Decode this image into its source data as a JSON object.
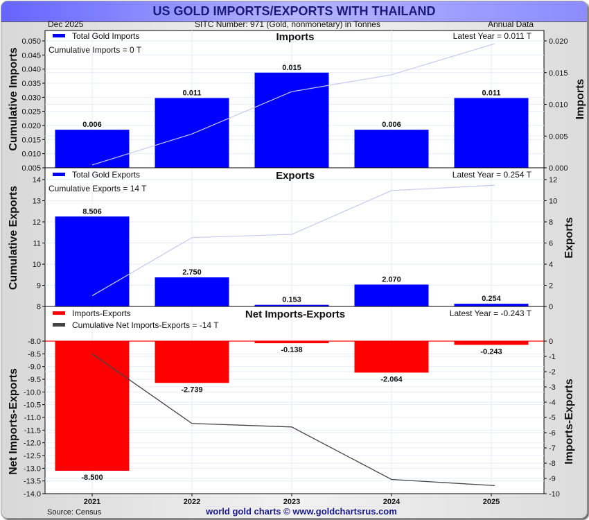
{
  "header": {
    "title": "US GOLD IMPORTS/EXPORTS WITH THAILAND",
    "date": "Dec  2025",
    "sitc": "SITC Number: 971 (Gold, nonmonetary) in Tonnes",
    "period": "Annual Data"
  },
  "footer": {
    "source": "Source: Census",
    "credit": "world gold charts © www.goldchartsrus.com"
  },
  "colors": {
    "imports_bar": "#0000ff",
    "exports_bar": "#0000ff",
    "net_bar": "#ff0000",
    "cumulative_line_light": "#c8c8f0",
    "cumulative_net_line": "#444444",
    "title_text": "#1a1a7a",
    "grid": "#e4eef8"
  },
  "chart_data": [
    {
      "type": "bar",
      "title": "Imports",
      "legend": "Total Gold Imports",
      "cumulative_label": "Cumulative Imports = 0 T",
      "latest_label": "Latest Year = 0.011 T",
      "categories": [
        "2021",
        "2022",
        "2023",
        "2024",
        "2025"
      ],
      "values": [
        0.006,
        0.011,
        0.015,
        0.006,
        0.011
      ],
      "value_labels": [
        "0.006",
        "0.011",
        "0.015",
        "0.006",
        "0.011"
      ],
      "cumulative": [
        0.006,
        0.017,
        0.032,
        0.038,
        0.049
      ],
      "ylabel_left": "Cumulative Imports",
      "ylabel_right": "Imports",
      "ylim_left": [
        0.005,
        0.052
      ],
      "ylim_right": [
        0.0,
        0.0216
      ],
      "ticks_left": [
        "0.005",
        "0.010",
        "0.015",
        "0.020",
        "0.025",
        "0.030",
        "0.035",
        "0.040",
        "0.045",
        "0.050"
      ],
      "ticks_right": [
        "0.000",
        "0.005",
        "0.010",
        "0.015",
        "0.020"
      ],
      "legend_position": "top-left",
      "grid": true
    },
    {
      "type": "bar",
      "title": "Exports",
      "legend": "Total Gold Exports",
      "cumulative_label": "Cumulative Exports = 14 T",
      "latest_label": "Latest Year = 0.254 T",
      "categories": [
        "2021",
        "2022",
        "2023",
        "2024",
        "2025"
      ],
      "values": [
        8.506,
        2.75,
        0.153,
        2.07,
        0.254
      ],
      "value_labels": [
        "8.506",
        "2.750",
        "0.153",
        "2.070",
        "0.254"
      ],
      "cumulative": [
        8.506,
        11.256,
        11.409,
        13.479,
        13.733
      ],
      "ylabel_left": "Cumulative Exports",
      "ylabel_right": "Exports",
      "ylim_left": [
        8,
        14.5
      ],
      "ylim_right": [
        0,
        13
      ],
      "ticks_left": [
        "8",
        "9",
        "10",
        "11",
        "12",
        "13",
        "14"
      ],
      "ticks_right": [
        "0",
        "2",
        "4",
        "6",
        "8",
        "10",
        "12"
      ],
      "legend_position": "top-left",
      "grid": true
    },
    {
      "type": "bar",
      "title": "Net Imports-Exports",
      "legend": "Imports-Exports",
      "legend2": "Cumulative Net Imports-Exports = -14 T",
      "latest_label": "Latest Year = -0.243 T",
      "categories": [
        "2021",
        "2022",
        "2023",
        "2024",
        "2025"
      ],
      "values": [
        -8.5,
        -2.739,
        -0.138,
        -2.064,
        -0.243
      ],
      "value_labels": [
        "-8.500",
        "-2.739",
        "-0.138",
        "-2.064",
        "-0.243"
      ],
      "cumulative": [
        -8.5,
        -11.239,
        -11.377,
        -13.441,
        -13.684
      ],
      "ylabel_left": "Net Imports-Exports",
      "ylabel_right": "Imports-Exports",
      "ylim_left": [
        -14.0,
        -8.0
      ],
      "ylim_right": [
        -10,
        0
      ],
      "ticks_left": [
        "-8.0",
        "-8.5",
        "-9.0",
        "-9.5",
        "-10.0",
        "-10.5",
        "-11.0",
        "-11.5",
        "-12.0",
        "-12.5",
        "-13.0",
        "-13.5",
        "-14.0"
      ],
      "ticks_right": [
        "0",
        "-1",
        "-2",
        "-3",
        "-4",
        "-5",
        "-6",
        "-7",
        "-8",
        "-9",
        "-10"
      ],
      "legend_position": "top-left",
      "grid": true
    }
  ]
}
